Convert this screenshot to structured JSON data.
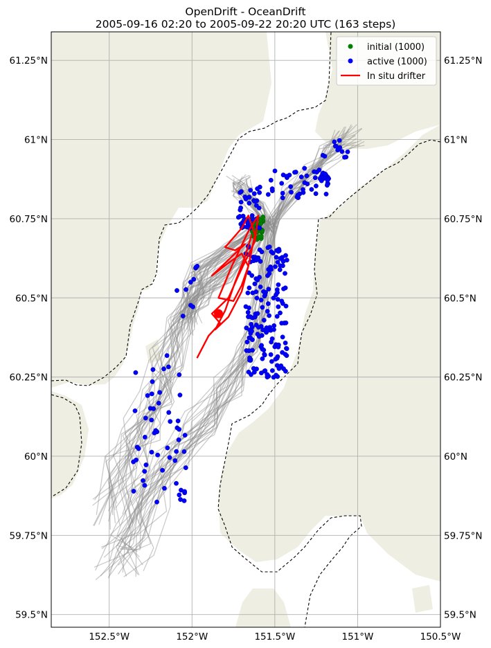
{
  "title": {
    "line1": "OpenDrift - OceanDrift",
    "line2": "2005-09-16 02:20 to 2005-09-22 20:20 UTC (163 steps)"
  },
  "map": {
    "lon_range": [
      -152.85,
      -150.5
    ],
    "lat_range": [
      59.46,
      61.34
    ],
    "lon_ticks": [
      {
        "value": -152.5,
        "label": "152.5°W"
      },
      {
        "value": -152.0,
        "label": "152°W"
      },
      {
        "value": -151.5,
        "label": "151.5°W"
      },
      {
        "value": -151.0,
        "label": "151°W"
      },
      {
        "value": -150.5,
        "label": "150.5°W"
      }
    ],
    "lat_ticks": [
      {
        "value": 59.5,
        "label": "59.5°N"
      },
      {
        "value": 59.75,
        "label": "59.75°N"
      },
      {
        "value": 60.0,
        "label": "60°N"
      },
      {
        "value": 60.25,
        "label": "60.25°N"
      },
      {
        "value": 60.5,
        "label": "60.5°N"
      },
      {
        "value": 60.75,
        "label": "60.75°N"
      },
      {
        "value": 61.0,
        "label": "61°N"
      },
      {
        "value": 61.25,
        "label": "61.25°N"
      }
    ],
    "grid": true,
    "colors": {
      "land": "#eeeee2",
      "ocean": "#ffffff",
      "trajectory": "#8c8c8c",
      "initial": "#008000",
      "active": "#0000ff",
      "drifter": "#ff0000",
      "grid": "#b0b0b0",
      "boundary": "#000000"
    }
  },
  "legend": {
    "position": "top-right",
    "items": [
      {
        "label": "initial (1000)",
        "marker": "green-dot"
      },
      {
        "label": "active (1000)",
        "marker": "blue-dot"
      },
      {
        "label": "In situ drifter",
        "marker": "red-line"
      }
    ]
  },
  "drifter_track": [
    [
      -151.97,
      60.31
    ],
    [
      -151.9,
      60.38
    ],
    [
      -151.83,
      60.42
    ],
    [
      -151.88,
      60.45
    ],
    [
      -151.78,
      60.5
    ],
    [
      -151.72,
      60.57
    ],
    [
      -151.62,
      60.68
    ],
    [
      -151.6,
      60.76
    ],
    [
      -151.66,
      60.71
    ],
    [
      -151.76,
      60.6
    ],
    [
      -151.84,
      60.5
    ],
    [
      -151.75,
      60.49
    ],
    [
      -151.7,
      60.54
    ],
    [
      -151.66,
      60.6
    ],
    [
      -151.7,
      60.64
    ],
    [
      -151.78,
      60.61
    ],
    [
      -151.88,
      60.57
    ],
    [
      -151.78,
      60.62
    ],
    [
      -151.68,
      60.67
    ],
    [
      -151.74,
      60.65
    ],
    [
      -151.8,
      60.66
    ],
    [
      -151.7,
      60.72
    ],
    [
      -151.66,
      60.76
    ],
    [
      -151.62,
      60.7
    ],
    [
      -151.66,
      60.6
    ],
    [
      -151.7,
      60.52
    ],
    [
      -151.78,
      60.44
    ],
    [
      -151.86,
      60.4
    ],
    [
      -151.8,
      60.46
    ],
    [
      -151.74,
      60.55
    ],
    [
      -151.68,
      60.63
    ],
    [
      -151.64,
      60.7
    ]
  ],
  "drifter_end": [
    -151.84,
    60.45
  ]
}
